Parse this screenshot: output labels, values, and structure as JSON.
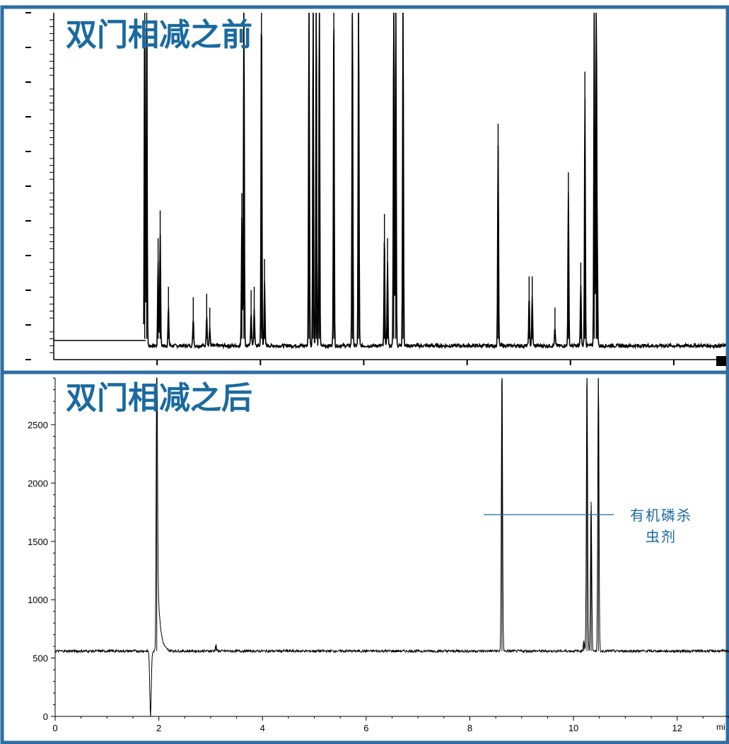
{
  "chart_data": [
    {
      "type": "line",
      "title": "双门相减之前",
      "yticks_labeled": false,
      "x_range": [
        0,
        13
      ],
      "y_range": [
        0,
        1000
      ],
      "baseline": 100,
      "xticks": [
        2,
        4,
        6,
        8,
        10,
        12
      ],
      "yticks": [
        0,
        100,
        200,
        300,
        400,
        500,
        600,
        700,
        800,
        900,
        1000
      ],
      "peaks": [
        {
          "x": 1.76,
          "y": 1100
        },
        {
          "x": 1.8,
          "y": 1100
        },
        {
          "x": 2.02,
          "y": 350
        },
        {
          "x": 2.06,
          "y": 430
        },
        {
          "x": 2.22,
          "y": 210
        },
        {
          "x": 2.7,
          "y": 180
        },
        {
          "x": 2.96,
          "y": 190
        },
        {
          "x": 3.02,
          "y": 150
        },
        {
          "x": 3.64,
          "y": 480
        },
        {
          "x": 3.68,
          "y": 1100
        },
        {
          "x": 3.82,
          "y": 200
        },
        {
          "x": 3.88,
          "y": 210
        },
        {
          "x": 4.02,
          "y": 1100
        },
        {
          "x": 4.08,
          "y": 290
        },
        {
          "x": 4.94,
          "y": 1100
        },
        {
          "x": 5.02,
          "y": 1100
        },
        {
          "x": 5.08,
          "y": 1100
        },
        {
          "x": 5.14,
          "y": 1100
        },
        {
          "x": 5.42,
          "y": 1100
        },
        {
          "x": 5.78,
          "y": 1100
        },
        {
          "x": 5.9,
          "y": 1100
        },
        {
          "x": 6.4,
          "y": 420
        },
        {
          "x": 6.46,
          "y": 350
        },
        {
          "x": 6.58,
          "y": 1100
        },
        {
          "x": 6.62,
          "y": 1100
        },
        {
          "x": 6.76,
          "y": 1100
        },
        {
          "x": 8.6,
          "y": 680
        },
        {
          "x": 9.2,
          "y": 240
        },
        {
          "x": 9.26,
          "y": 240
        },
        {
          "x": 9.7,
          "y": 150
        },
        {
          "x": 9.96,
          "y": 540
        },
        {
          "x": 10.2,
          "y": 280
        },
        {
          "x": 10.28,
          "y": 830
        },
        {
          "x": 10.46,
          "y": 1100
        },
        {
          "x": 10.5,
          "y": 1100
        },
        {
          "x": 10.52,
          "y": 350
        }
      ]
    },
    {
      "type": "line",
      "title": "双门相减之后",
      "x_range": [
        0,
        13
      ],
      "y_range": [
        0,
        2900
      ],
      "baseline": 560,
      "xticks": [
        0,
        2,
        4,
        6,
        8,
        10,
        12
      ],
      "yticks": [
        0,
        500,
        1000,
        1500,
        2000,
        2500
      ],
      "x_unit_partial": "mi",
      "peaks": [
        {
          "x": 1.96,
          "y": 3000
        },
        {
          "x": 3.1,
          "y": 610
        },
        {
          "x": 8.62,
          "y": 3000
        },
        {
          "x": 10.2,
          "y": 650
        },
        {
          "x": 10.26,
          "y": 3000
        },
        {
          "x": 10.34,
          "y": 1840
        },
        {
          "x": 10.48,
          "y": 3000
        }
      ],
      "annotation": {
        "lines": [
          "有机磷杀",
          "虫剂"
        ],
        "color": "#1a6aa0"
      }
    }
  ],
  "colors": {
    "frame": "#2f6da3",
    "title": "#1a6aa0",
    "trace": "#000000"
  }
}
